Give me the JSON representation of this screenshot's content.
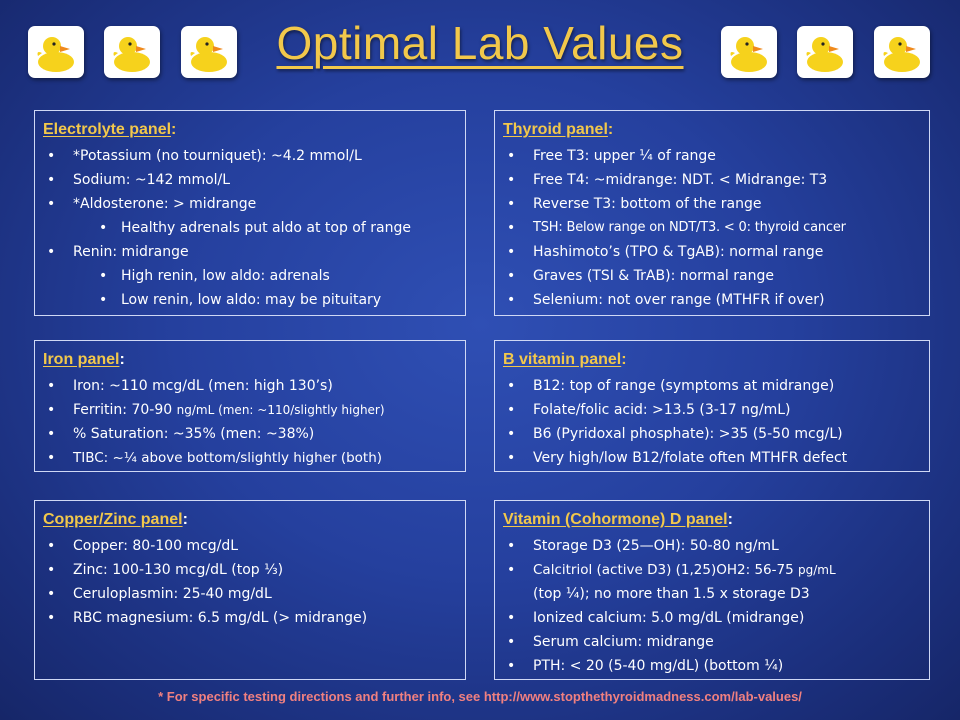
{
  "title": "Optimal Lab Values",
  "colors": {
    "heading": "#f2c84b",
    "text": "#ffffff",
    "footer": "#f08080",
    "background": "#25409e"
  },
  "decorations": {
    "duck_icon_count": 6,
    "icon": "rubber-duck-icon"
  },
  "panels": {
    "electrolyte": {
      "title": "Electrolyte panel",
      "items": [
        "*Potassium (no tourniquet): ~4.2 mmol/L",
        "Sodium: ~142 mmol/L",
        "*Aldosterone: > midrange",
        "Healthy adrenals put aldo at top of range",
        "Renin: midrange",
        "High renin, low aldo: adrenals",
        "Low renin, low aldo: may be pituitary"
      ]
    },
    "thyroid": {
      "title": "Thyroid panel",
      "items": [
        "Free T3: upper ¼  of range",
        "Free T4: ~midrange: NDT.  < Midrange: T3",
        "Reverse T3: bottom of the range",
        "TSH: Below range on NDT/T3. < 0: thyroid cancer",
        "Hashimoto’s (TPO & TgAB): normal range",
        "Graves (TSI & TrAB): normal range",
        "Selenium: not over range (MTHFR if over)"
      ]
    },
    "iron": {
      "title": "Iron panel",
      "items": [
        "Iron: ~110 mcg/dL (men: high 130’s)",
        "Ferritin: 70-90",
        "ng/mL (men: ~110/slightly higher)",
        "% Saturation: ~35% (men: ~38%)",
        "TIBC: ~¼ above bottom/slightly higher (both)"
      ]
    },
    "bvitamin": {
      "title": "B vitamin panel",
      "items": [
        "B12: top of range (symptoms at midrange)",
        "Folate/folic acid: >13.5 (3-17 ng/mL)",
        "B6 (Pyridoxal phosphate): >35 (5-50 mcg/L)",
        "Very high/low  B12/folate often MTHFR defect"
      ]
    },
    "copperzinc": {
      "title": "Copper/Zinc panel",
      "items": [
        "Copper: 80-100 mcg/dL",
        "Zinc: 100-130 mcg/dL (top ⅓)",
        "Ceruloplasmin: 25-40 mg/dL",
        "RBC magnesium: 6.5 mg/dL (> midrange)"
      ]
    },
    "vitamind": {
      "title": "Vitamin (Cohormone) D panel",
      "items": [
        "Storage D3 (25—OH): 50-80 ng/mL",
        "Calcitriol (active D3) (1,25)OH2: 56-75",
        "pg/mL",
        "(top ¼); no more than 1.5  x  storage D3",
        "Ionized calcium: 5.0 mg/dL (midrange)",
        "Serum calcium: midrange",
        "PTH: < 20 (5-40 mg/dL) (bottom ¼)"
      ]
    }
  },
  "footer": "* For specific testing directions and further info, see http://www.stopthethyroidmadness.com/lab-values/"
}
